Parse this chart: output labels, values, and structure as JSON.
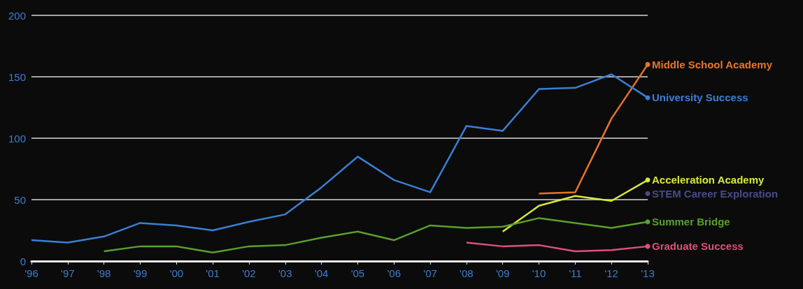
{
  "chart_data": {
    "type": "line",
    "categories": [
      "'96",
      "'97",
      "'98",
      "'99",
      "'00",
      "'01",
      "'02",
      "'03",
      "'04",
      "'05",
      "'06",
      "'07",
      "'08",
      "'09",
      "'10",
      "'11",
      "'12",
      "'13"
    ],
    "series": [
      {
        "name": "Middle School Academy",
        "color": "#e8742a",
        "values": [
          null,
          null,
          null,
          null,
          null,
          null,
          null,
          null,
          null,
          null,
          null,
          null,
          null,
          null,
          55,
          56,
          116,
          160
        ]
      },
      {
        "name": "University Success",
        "color": "#3a7fd5",
        "values": [
          17,
          15,
          20,
          31,
          29,
          25,
          32,
          38,
          60,
          85,
          66,
          56,
          110,
          106,
          140,
          141,
          152,
          133
        ]
      },
      {
        "name": "Acceleration Academy",
        "color": "#d8e83a",
        "values": [
          null,
          null,
          null,
          null,
          null,
          null,
          null,
          null,
          null,
          null,
          null,
          null,
          null,
          24,
          45,
          53,
          49,
          66
        ]
      },
      {
        "name": "STEM Career Exploration",
        "color": "#4a4a8a",
        "marker": "circle",
        "values": [
          null,
          null,
          null,
          null,
          null,
          null,
          null,
          null,
          null,
          null,
          null,
          null,
          null,
          null,
          null,
          null,
          null,
          55
        ]
      },
      {
        "name": "Summer Bridge",
        "color": "#5aa02c",
        "values": [
          null,
          null,
          8,
          12,
          12,
          7,
          12,
          13,
          19,
          24,
          17,
          29,
          27,
          28,
          35,
          31,
          27,
          32
        ]
      },
      {
        "name": "Graduate Success",
        "color": "#e0507a",
        "values": [
          null,
          null,
          null,
          null,
          null,
          null,
          null,
          null,
          null,
          null,
          null,
          null,
          15,
          12,
          13,
          8,
          9,
          12
        ]
      }
    ],
    "ylim": [
      0,
      200
    ],
    "yticks": [
      0,
      50,
      100,
      150,
      200
    ],
    "grid": "y"
  }
}
